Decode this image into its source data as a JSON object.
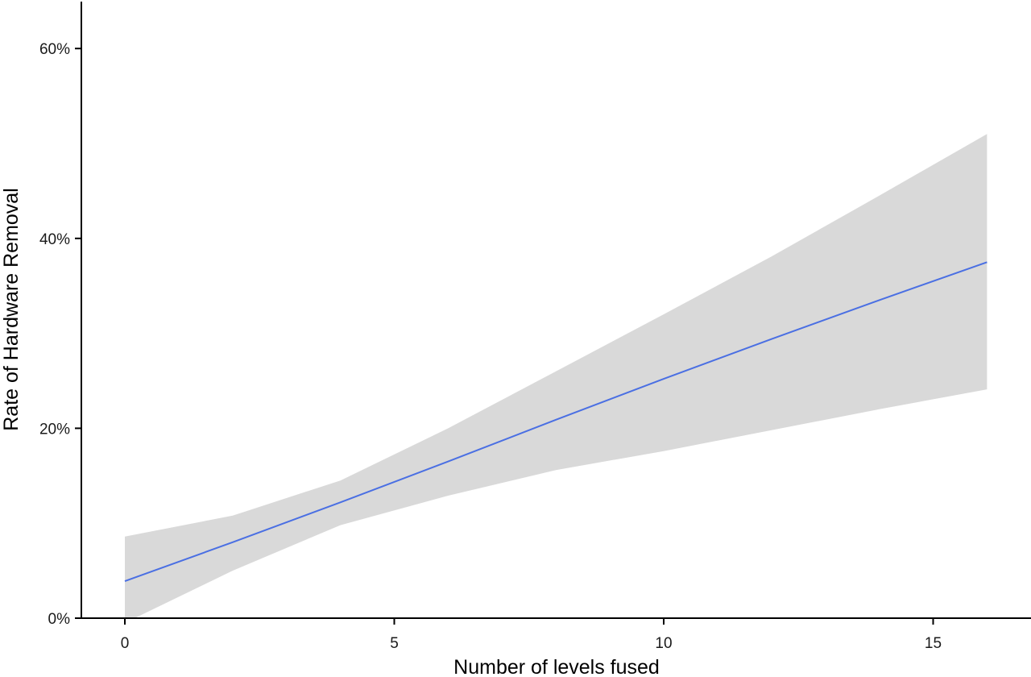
{
  "chart_data": {
    "type": "line",
    "title": "",
    "xlabel": "Number of levels fused",
    "ylabel": "Rate of Hardware Removal",
    "xlim": [
      -0.8,
      16.8
    ],
    "ylim": [
      0,
      65
    ],
    "x_ticks": [
      0,
      5,
      10,
      15
    ],
    "x_tick_labels": [
      "0",
      "5",
      "10",
      "15"
    ],
    "y_ticks": [
      0,
      20,
      40,
      60
    ],
    "y_tick_labels": [
      "0%",
      "20%",
      "40%",
      "60%"
    ],
    "grid": false,
    "legend": "none",
    "colors": {
      "line": "#4a6fe3",
      "band": "#d9d9d9"
    },
    "series": [
      {
        "values": [
          {
            "x": 0,
            "y": 3.9
          },
          {
            "x": 2,
            "y": 8.0
          },
          {
            "x": 4,
            "y": 12.2
          },
          {
            "x": 6,
            "y": 16.5
          },
          {
            "x": 8,
            "y": 20.9
          },
          {
            "x": 10,
            "y": 25.2
          },
          {
            "x": 12,
            "y": 29.4
          },
          {
            "x": 14,
            "y": 33.5
          },
          {
            "x": 16,
            "y": 37.5
          }
        ],
        "ci_upper": [
          8.6,
          10.8,
          14.5,
          20.0,
          26.0,
          32.0,
          38.1,
          44.5,
          51.0
        ],
        "ci_lower": [
          -0.5,
          5.0,
          9.8,
          12.9,
          15.6,
          17.6,
          19.8,
          22.0,
          24.1
        ]
      }
    ]
  }
}
